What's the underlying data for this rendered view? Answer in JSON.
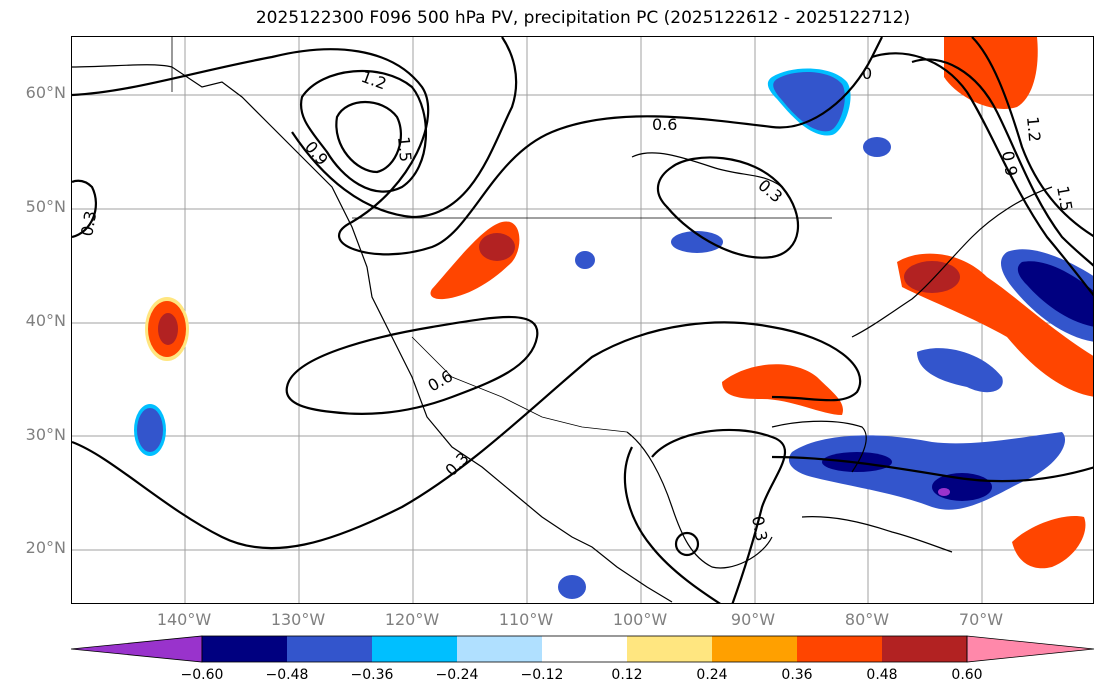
{
  "title": "2025122300 F096 500 hPa PV, precipitation PC (2025122612 - 2025122712)",
  "lat_labels": [
    "60°N",
    "50°N",
    "40°N",
    "30°N",
    "20°N"
  ],
  "lon_labels": [
    "140°W",
    "130°W",
    "120°W",
    "110°W",
    "100°W",
    "90°W",
    "80°W",
    "70°W"
  ],
  "contour_labels": [
    "1.2",
    "1.5",
    "0.9",
    "0.3",
    "0.6",
    "0.3",
    "0.9",
    "1.2",
    "1.5",
    "0",
    "0.6",
    "0.3",
    "0.3"
  ],
  "colorbar": {
    "ticks": [
      "−0.60",
      "−0.48",
      "−0.36",
      "−0.24",
      "−0.12",
      "0.12",
      "0.24",
      "0.36",
      "0.48",
      "0.60"
    ],
    "colors": [
      "#9933cc",
      "#000080",
      "#3355cc",
      "#00bfff",
      "#b0e0ff",
      "#ffffff",
      "#ffe680",
      "#ffa000",
      "#ff4500",
      "#b22222",
      "#ff88aa"
    ]
  },
  "colors": {
    "positive_orange": "#ff4500",
    "positive_red": "#b22222",
    "negative_blue": "#3355cc",
    "negative_navy": "#000080",
    "grid": "#a0a0a0",
    "axis_label": "#808080"
  }
}
